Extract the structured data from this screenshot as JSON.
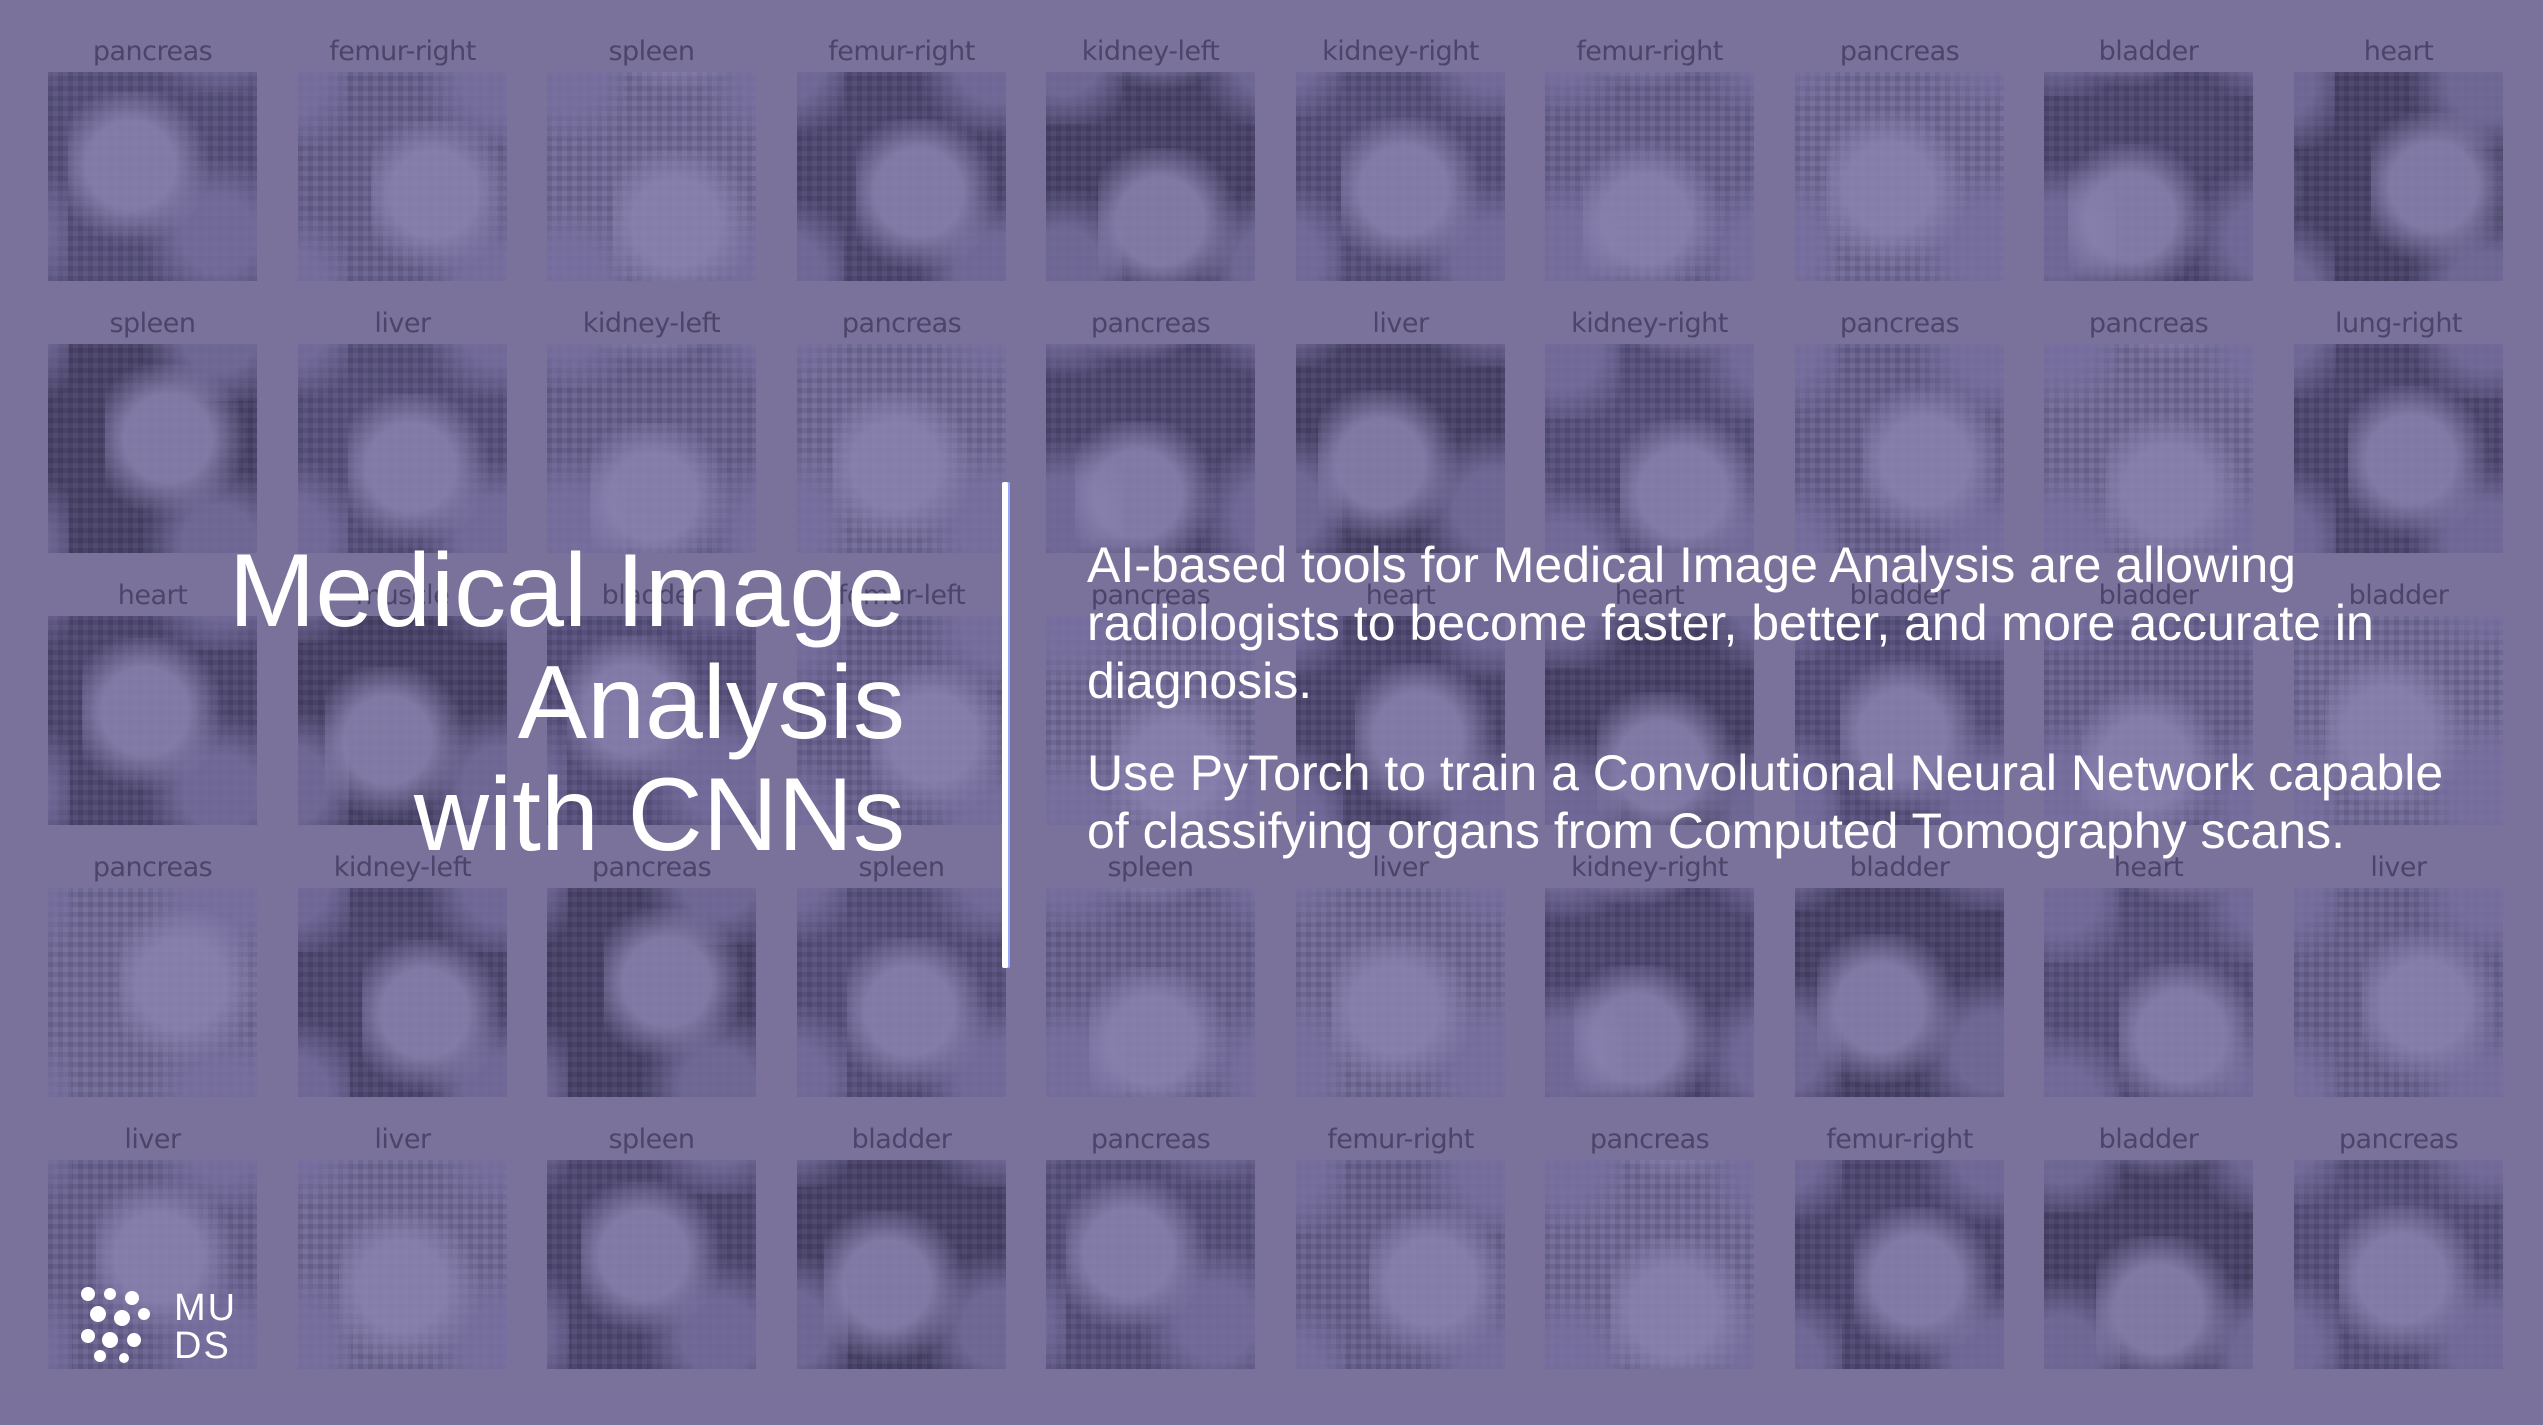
{
  "grid_rows": [
    [
      "pancreas",
      "femur-right",
      "spleen",
      "femur-right",
      "kidney-left",
      "kidney-right",
      "femur-right",
      "pancreas",
      "bladder",
      "heart"
    ],
    [
      "spleen",
      "liver",
      "kidney-left",
      "pancreas",
      "pancreas",
      "liver",
      "kidney-right",
      "pancreas",
      "pancreas",
      "lung-right"
    ],
    [
      "heart",
      "muscle",
      "bladder",
      "femur-left",
      "pancreas",
      "heart",
      "heart",
      "bladder",
      "bladder",
      "bladder"
    ],
    [
      "pancreas",
      "kidney-left",
      "pancreas",
      "spleen",
      "spleen",
      "liver",
      "kidney-right",
      "bladder",
      "heart",
      "liver"
    ],
    [
      "liver",
      "liver",
      "spleen",
      "bladder",
      "pancreas",
      "femur-right",
      "pancreas",
      "femur-right",
      "bladder",
      "pancreas"
    ]
  ],
  "title": {
    "line1": "Medical Image",
    "line2": "Analysis",
    "line3": "with CNNs"
  },
  "description": {
    "p1": "AI-based tools for Medical Image Analysis are allowing radiologists to become faster, better, and more accurate in diagnosis.",
    "p2": "Use PyTorch to train a Convolutional Neural Network capable of classifying organs from Computed Tomography scans."
  },
  "logo": {
    "text_top": "MU",
    "text_bottom": "DS",
    "icon": "dots-logo-icon"
  },
  "colors": {
    "background": "#7a729c",
    "tile_dark": "#2a2450",
    "text": "#ffffff",
    "label": "#2a2545"
  }
}
